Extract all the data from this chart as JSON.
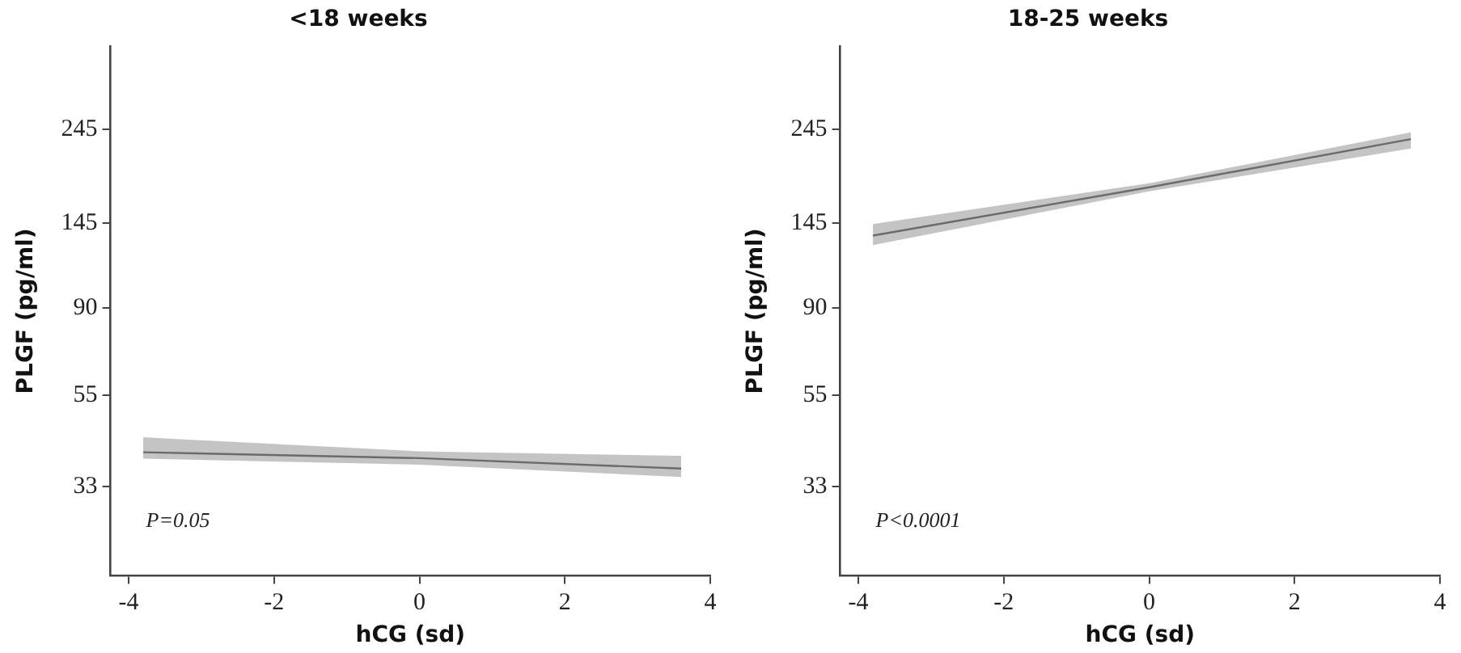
{
  "chart_data": [
    {
      "type": "line",
      "title": "<18 weeks",
      "xlabel": "hCG (sd)",
      "ylabel": "PLGF (pg/ml)",
      "log": "y",
      "x": [
        -3.8,
        0,
        3.6
      ],
      "series": [
        {
          "color": "#6b6b6b",
          "values": [
            40,
            38.7,
            36.5
          ],
          "lower": [
            38.6,
            37.3,
            34.8
          ],
          "upper": [
            43.5,
            40.2,
            39.2
          ]
        }
      ],
      "xlim": [
        -4.25,
        4
      ],
      "xticks": [
        -4,
        -2,
        0,
        2,
        4
      ],
      "ylim": [
        20,
        390
      ],
      "yticks": [
        33,
        55,
        90,
        145,
        245
      ],
      "grid": false,
      "legend": false,
      "marker": "none",
      "annotations": [
        "P=0.05"
      ]
    },
    {
      "type": "line",
      "title": "18-25 weeks",
      "xlabel": "hCG (sd)",
      "ylabel": "PLGF (pg/ml)",
      "log": "y",
      "x": [
        -3.8,
        0,
        3.6
      ],
      "series": [
        {
          "color": "#6b6b6b",
          "values": [
            135,
            177,
            232
          ],
          "lower": [
            128,
            173,
            220
          ],
          "upper": [
            144,
            181,
            241
          ]
        }
      ],
      "xlim": [
        -4.25,
        4
      ],
      "xticks": [
        -4,
        -2,
        0,
        2,
        4
      ],
      "ylim": [
        20,
        390
      ],
      "yticks": [
        33,
        55,
        90,
        145,
        245
      ],
      "grid": false,
      "legend": false,
      "marker": "none",
      "annotations": [
        "P<0.0001"
      ]
    }
  ]
}
